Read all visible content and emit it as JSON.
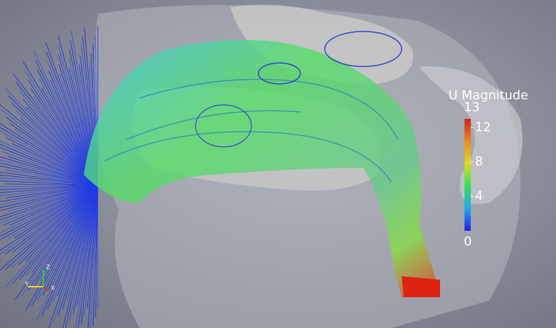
{
  "colorbar": {
    "title": "U Magnitude",
    "range": [
      0,
      13
    ],
    "ticks": [
      4,
      8,
      12
    ],
    "colors": [
      "#2222dd",
      "#22aaee",
      "#33dd55",
      "#dddd22",
      "#ee8822",
      "#cc2222"
    ]
  },
  "axes_triad": {
    "labels": [
      "Z",
      "Y",
      "X"
    ]
  }
}
